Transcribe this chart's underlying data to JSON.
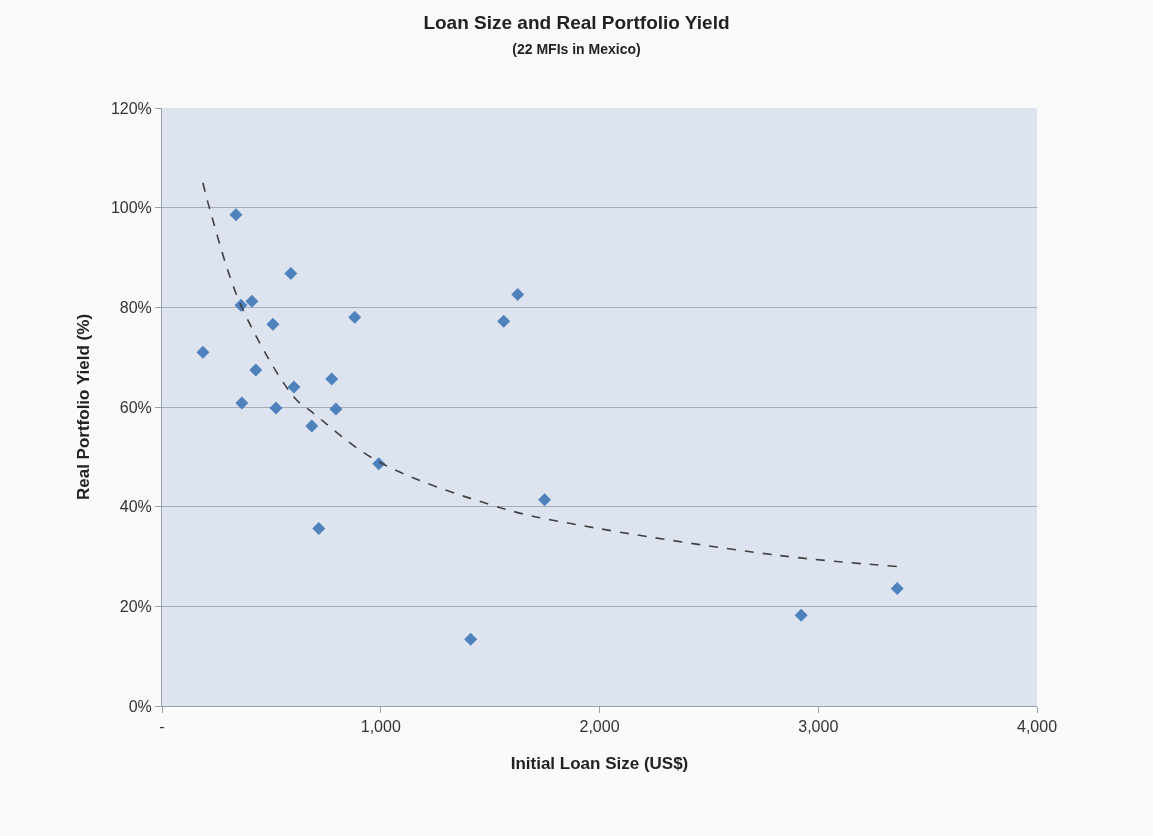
{
  "chart_data": {
    "type": "scatter",
    "title": "Loan Size and Real Portfolio Yield",
    "subtitle": "(22 MFIs in Mexico)",
    "xlabel": "Initial Loan Size (US$)",
    "ylabel": "Real Portfolio Yield (%)",
    "xlim": [
      0,
      4000
    ],
    "xticks": [
      {
        "value": 0,
        "label": "-"
      },
      {
        "value": 1000,
        "label": "1,000"
      },
      {
        "value": 2000,
        "label": "2,000"
      },
      {
        "value": 3000,
        "label": "3,000"
      },
      {
        "value": 4000,
        "label": "4,000"
      }
    ],
    "ylim": [
      0,
      120
    ],
    "yticks": [
      {
        "value": 0,
        "label": "0%"
      },
      {
        "value": 20,
        "label": "20%"
      },
      {
        "value": 40,
        "label": "40%"
      },
      {
        "value": 60,
        "label": "60%"
      },
      {
        "value": 80,
        "label": "80%"
      },
      {
        "value": 100,
        "label": "100%"
      },
      {
        "value": 120,
        "label": "120%"
      }
    ],
    "grid": "y",
    "marker": "diamond",
    "series": [
      {
        "color": "#4f81bd",
        "x": [
          338,
          589,
          361,
          411,
          507,
          881,
          187,
          429,
          776,
          603,
          365,
          521,
          795,
          685,
          991,
          1626,
          1562,
          717,
          1749,
          1411,
          3361,
          2922
        ],
        "values": [
          98.6,
          86.8,
          80.4,
          81.2,
          76.6,
          78,
          71,
          67.4,
          65.6,
          64,
          60.8,
          59.8,
          59.6,
          56.2,
          48.6,
          82.6,
          77.2,
          35.6,
          41.4,
          13.4,
          23.6,
          18.2
        ]
      },
      {
        "type": "line",
        "color": "#404040",
        "line_style": "dashed",
        "marker": "none",
        "x": [
          187,
          219,
          361,
          603,
          685,
          991,
          1562,
          1895,
          2822,
          3361
        ],
        "values": [
          105,
          99.6,
          80.4,
          62,
          59,
          49,
          39.6,
          36.4,
          30.2,
          28
        ]
      }
    ]
  }
}
